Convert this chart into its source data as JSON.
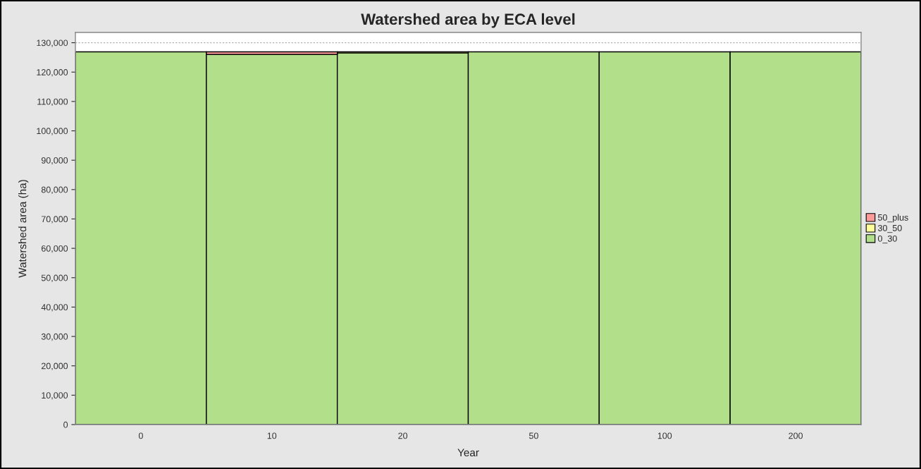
{
  "chart_data": {
    "type": "bar",
    "title": "Watershed area by ECA level",
    "xlabel": "Year",
    "ylabel": "Watershed area (ha)",
    "categories": [
      "0",
      "10",
      "20",
      "50",
      "100",
      "200"
    ],
    "stacked": true,
    "series": [
      {
        "name": "0_30",
        "color": "#b2df8a",
        "values": [
          126900,
          126000,
          126500,
          126900,
          126900,
          126900
        ]
      },
      {
        "name": "30_50",
        "color": "#ffff99",
        "values": [
          null,
          null,
          400,
          null,
          null,
          null
        ]
      },
      {
        "name": "50_plus",
        "color": "#fb9a99",
        "values": [
          null,
          900,
          null,
          null,
          null,
          null
        ]
      }
    ],
    "ylim": [
      0,
      133500
    ],
    "yticks": [
      0,
      {
        "value": 10000,
        "label": "10,000"
      },
      {
        "value": 20000,
        "label": "20,000"
      },
      {
        "value": 30000,
        "label": "30,000"
      },
      {
        "value": 40000,
        "label": "40,000"
      },
      {
        "value": 50000,
        "label": "50,000"
      },
      {
        "value": 60000,
        "label": "60,000"
      },
      {
        "value": 70000,
        "label": "70,000"
      },
      {
        "value": 80000,
        "label": "80,000"
      },
      {
        "value": 90000,
        "label": "90,000"
      },
      {
        "value": 100000,
        "label": "100,000"
      },
      {
        "value": 110000,
        "label": "110,000"
      },
      {
        "value": 120000,
        "label": "120,000"
      },
      {
        "value": 130000,
        "label": "130,000"
      }
    ],
    "grid": "y",
    "legend": "right"
  }
}
